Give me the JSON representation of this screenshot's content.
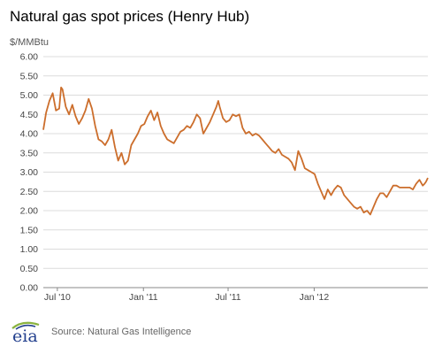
{
  "title": "Natural gas spot prices (Henry Hub)",
  "source": "Source: Natural Gas Intelligence",
  "logo": {
    "text": "eia"
  },
  "colors": {
    "line": "#cc6e2c",
    "grid": "#dcdcdc",
    "axis": "#888888",
    "logo_blue": "#23408e",
    "logo_green": "#8ab33f"
  },
  "chart_data": {
    "type": "line",
    "title": "Natural gas spot prices (Henry Hub)",
    "ylabel": "$/MMBtu",
    "xlabel": "",
    "ylim": [
      0,
      6
    ],
    "xlim": [
      "2010-06-01",
      "2012-08-31"
    ],
    "y_ticks": [
      "0.00",
      "0.50",
      "1.00",
      "1.50",
      "2.00",
      "2.50",
      "3.00",
      "3.50",
      "4.00",
      "4.50",
      "5.00",
      "5.50",
      "6.00"
    ],
    "x_ticks": [
      {
        "label": "Jul '10",
        "date": "2010-07-01"
      },
      {
        "label": "Jan '11",
        "date": "2011-01-01"
      },
      {
        "label": "Jul '11",
        "date": "2011-07-01"
      },
      {
        "label": "Jan '12",
        "date": "2012-01-01"
      }
    ],
    "grid": true,
    "series": [
      {
        "values": [
          [
            "2010-06-01",
            4.1
          ],
          [
            "2010-06-07",
            4.55
          ],
          [
            "2010-06-14",
            4.85
          ],
          [
            "2010-06-21",
            5.05
          ],
          [
            "2010-06-28",
            4.6
          ],
          [
            "2010-07-05",
            4.65
          ],
          [
            "2010-07-09",
            5.2
          ],
          [
            "2010-07-12",
            5.15
          ],
          [
            "2010-07-19",
            4.7
          ],
          [
            "2010-07-26",
            4.5
          ],
          [
            "2010-08-02",
            4.75
          ],
          [
            "2010-08-09",
            4.45
          ],
          [
            "2010-08-16",
            4.25
          ],
          [
            "2010-08-23",
            4.4
          ],
          [
            "2010-08-30",
            4.6
          ],
          [
            "2010-09-06",
            4.9
          ],
          [
            "2010-09-13",
            4.65
          ],
          [
            "2010-09-20",
            4.2
          ],
          [
            "2010-09-27",
            3.85
          ],
          [
            "2010-10-04",
            3.8
          ],
          [
            "2010-10-11",
            3.7
          ],
          [
            "2010-10-18",
            3.85
          ],
          [
            "2010-10-25",
            4.1
          ],
          [
            "2010-11-01",
            3.65
          ],
          [
            "2010-11-08",
            3.3
          ],
          [
            "2010-11-15",
            3.5
          ],
          [
            "2010-11-22",
            3.2
          ],
          [
            "2010-11-29",
            3.3
          ],
          [
            "2010-12-06",
            3.7
          ],
          [
            "2010-12-13",
            3.85
          ],
          [
            "2010-12-20",
            4.0
          ],
          [
            "2010-12-27",
            4.2
          ],
          [
            "2011-01-03",
            4.25
          ],
          [
            "2011-01-10",
            4.45
          ],
          [
            "2011-01-17",
            4.6
          ],
          [
            "2011-01-24",
            4.35
          ],
          [
            "2011-01-31",
            4.55
          ],
          [
            "2011-02-07",
            4.2
          ],
          [
            "2011-02-14",
            4.0
          ],
          [
            "2011-02-21",
            3.85
          ],
          [
            "2011-02-28",
            3.8
          ],
          [
            "2011-03-07",
            3.75
          ],
          [
            "2011-03-14",
            3.9
          ],
          [
            "2011-03-21",
            4.05
          ],
          [
            "2011-03-28",
            4.1
          ],
          [
            "2011-04-04",
            4.2
          ],
          [
            "2011-04-11",
            4.15
          ],
          [
            "2011-04-18",
            4.3
          ],
          [
            "2011-04-25",
            4.5
          ],
          [
            "2011-05-02",
            4.4
          ],
          [
            "2011-05-09",
            4.0
          ],
          [
            "2011-05-16",
            4.15
          ],
          [
            "2011-05-23",
            4.3
          ],
          [
            "2011-05-30",
            4.5
          ],
          [
            "2011-06-06",
            4.7
          ],
          [
            "2011-06-10",
            4.85
          ],
          [
            "2011-06-13",
            4.7
          ],
          [
            "2011-06-20",
            4.4
          ],
          [
            "2011-06-27",
            4.3
          ],
          [
            "2011-07-04",
            4.35
          ],
          [
            "2011-07-11",
            4.5
          ],
          [
            "2011-07-18",
            4.45
          ],
          [
            "2011-07-25",
            4.5
          ],
          [
            "2011-08-01",
            4.15
          ],
          [
            "2011-08-08",
            4.0
          ],
          [
            "2011-08-15",
            4.05
          ],
          [
            "2011-08-22",
            3.95
          ],
          [
            "2011-08-29",
            4.0
          ],
          [
            "2011-09-05",
            3.95
          ],
          [
            "2011-09-12",
            3.85
          ],
          [
            "2011-09-19",
            3.75
          ],
          [
            "2011-09-26",
            3.65
          ],
          [
            "2011-10-03",
            3.55
          ],
          [
            "2011-10-10",
            3.5
          ],
          [
            "2011-10-17",
            3.6
          ],
          [
            "2011-10-24",
            3.45
          ],
          [
            "2011-10-31",
            3.4
          ],
          [
            "2011-11-07",
            3.35
          ],
          [
            "2011-11-14",
            3.25
          ],
          [
            "2011-11-21",
            3.05
          ],
          [
            "2011-11-28",
            3.55
          ],
          [
            "2011-12-05",
            3.35
          ],
          [
            "2011-12-12",
            3.1
          ],
          [
            "2011-12-19",
            3.05
          ],
          [
            "2011-12-26",
            3.0
          ],
          [
            "2012-01-02",
            2.95
          ],
          [
            "2012-01-09",
            2.7
          ],
          [
            "2012-01-16",
            2.5
          ],
          [
            "2012-01-23",
            2.3
          ],
          [
            "2012-01-30",
            2.55
          ],
          [
            "2012-02-06",
            2.4
          ],
          [
            "2012-02-13",
            2.55
          ],
          [
            "2012-02-20",
            2.65
          ],
          [
            "2012-02-27",
            2.6
          ],
          [
            "2012-03-05",
            2.4
          ],
          [
            "2012-03-12",
            2.3
          ],
          [
            "2012-03-19",
            2.2
          ],
          [
            "2012-03-26",
            2.1
          ],
          [
            "2012-04-02",
            2.05
          ],
          [
            "2012-04-09",
            2.1
          ],
          [
            "2012-04-16",
            1.95
          ],
          [
            "2012-04-23",
            2.0
          ],
          [
            "2012-04-30",
            1.9
          ],
          [
            "2012-05-07",
            2.1
          ],
          [
            "2012-05-14",
            2.3
          ],
          [
            "2012-05-21",
            2.45
          ],
          [
            "2012-05-28",
            2.45
          ],
          [
            "2012-06-04",
            2.35
          ],
          [
            "2012-06-11",
            2.5
          ],
          [
            "2012-06-18",
            2.65
          ],
          [
            "2012-06-25",
            2.65
          ],
          [
            "2012-07-02",
            2.6
          ],
          [
            "2012-07-09",
            2.6
          ],
          [
            "2012-07-16",
            2.6
          ],
          [
            "2012-07-23",
            2.6
          ],
          [
            "2012-07-30",
            2.55
          ],
          [
            "2012-08-06",
            2.7
          ],
          [
            "2012-08-13",
            2.8
          ],
          [
            "2012-08-20",
            2.65
          ],
          [
            "2012-08-24",
            2.7
          ],
          [
            "2012-08-27",
            2.75
          ],
          [
            "2012-08-31",
            2.85
          ]
        ]
      }
    ]
  }
}
